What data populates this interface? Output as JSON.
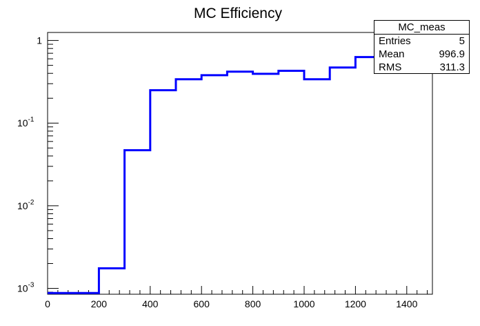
{
  "chart_data": {
    "type": "step",
    "title": "MC Efficiency",
    "xlabel": "",
    "ylabel": "",
    "x_edges": [
      0,
      100,
      200,
      300,
      400,
      500,
      600,
      700,
      800,
      900,
      1000,
      1100,
      1200,
      1300,
      1400,
      1500
    ],
    "values": [
      0.00088,
      0.00088,
      0.00175,
      0.047,
      0.25,
      0.34,
      0.38,
      0.42,
      0.395,
      0.43,
      0.34,
      0.47,
      0.63,
      0.69,
      0.69
    ],
    "xlim": [
      0,
      1500
    ],
    "ylim": [
      0.00085,
      1.25
    ],
    "yscale": "log",
    "x_ticks": [
      "0",
      "200",
      "400",
      "600",
      "800",
      "1000",
      "1200",
      "1400"
    ],
    "x_tick_values": [
      0,
      200,
      400,
      600,
      800,
      1000,
      1200,
      1400
    ],
    "y_ticks": [
      {
        "value": 1,
        "base": "1",
        "exp": ""
      },
      {
        "value": 0.1,
        "base": "10",
        "exp": "-1"
      },
      {
        "value": 0.01,
        "base": "10",
        "exp": "-2"
      },
      {
        "value": 0.001,
        "base": "10",
        "exp": "-3"
      }
    ],
    "line_color": "#0000ff",
    "grid": false
  },
  "stats_box": {
    "name": "MC_meas",
    "entries_label": "Entries",
    "entries_value": "5",
    "mean_label": "Mean",
    "mean_value": "996.9",
    "rms_label": "RMS",
    "rms_value": "311.3"
  }
}
